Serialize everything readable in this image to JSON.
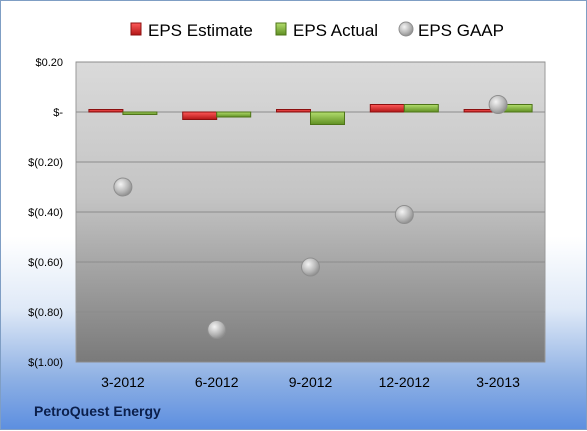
{
  "company": "PetroQuest Energy",
  "colors": {
    "estimate": "#d42b2b",
    "actual": "#86b640",
    "gaap": "#b4b4b4"
  },
  "chart_data": {
    "type": "bar",
    "categories": [
      "3-2012",
      "6-2012",
      "9-2012",
      "12-2012",
      "3-2013"
    ],
    "series": [
      {
        "name": "EPS Estimate",
        "kind": "bar",
        "values": [
          0.01,
          -0.03,
          0.01,
          0.03,
          0.01
        ]
      },
      {
        "name": "EPS Actual",
        "kind": "bar",
        "values": [
          -0.01,
          -0.02,
          -0.05,
          0.03,
          0.03
        ]
      },
      {
        "name": "EPS GAAP",
        "kind": "scatter",
        "values": [
          -0.3,
          -0.87,
          -0.62,
          -0.41,
          0.03
        ]
      }
    ],
    "yticks": [
      "$0.20",
      "$-",
      "$(0.20)",
      "$(0.40)",
      "$(0.60)",
      "$(0.80)",
      "$(1.00)"
    ],
    "ylim": [
      -1.0,
      0.2
    ],
    "grid": true,
    "legend": "top"
  }
}
